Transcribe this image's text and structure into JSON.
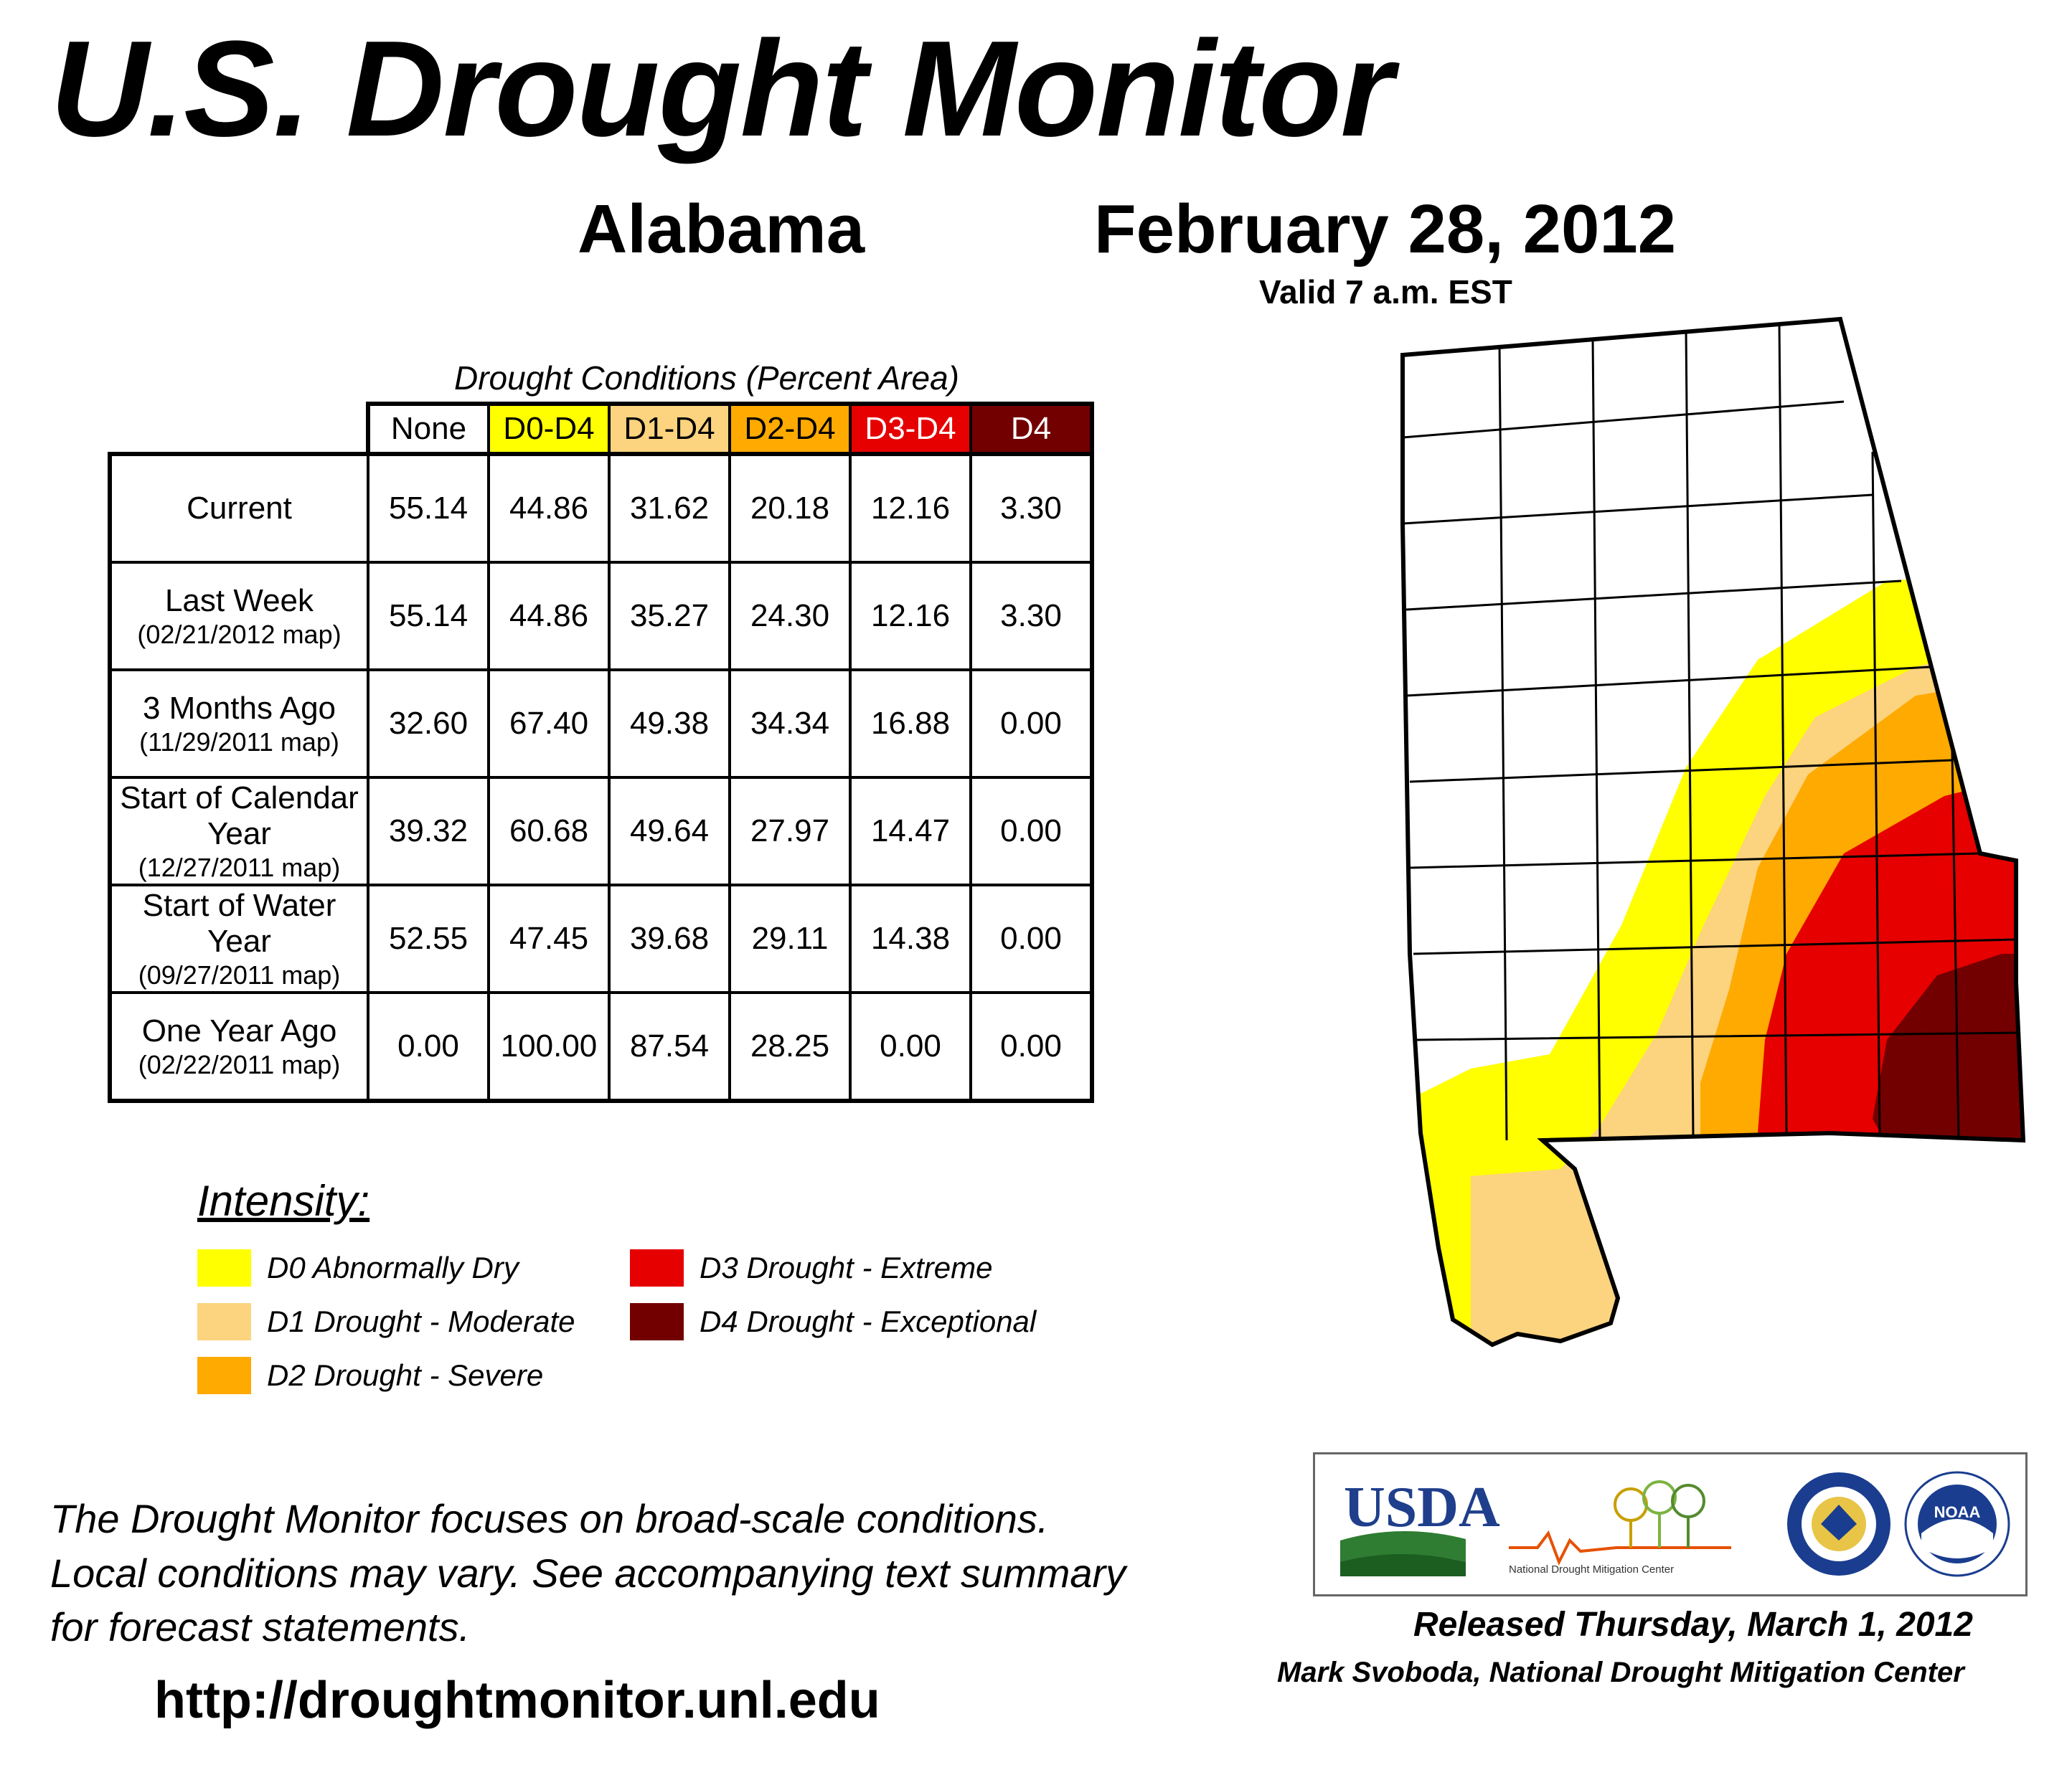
{
  "header": {
    "title": "U.S. Drought Monitor",
    "state": "Alabama",
    "date": "February 28, 2012",
    "valid": "Valid 7 a.m. EST"
  },
  "table": {
    "caption": "Drought Conditions (Percent Area)",
    "columns": [
      {
        "label": "None",
        "color": "#ffffff",
        "text_color": "#000000"
      },
      {
        "label": "D0-D4",
        "color": "#ffff00",
        "text_color": "#000000"
      },
      {
        "label": "D1-D4",
        "color": "#fcd37f",
        "text_color": "#000000"
      },
      {
        "label": "D2-D4",
        "color": "#ffaa00",
        "text_color": "#000000"
      },
      {
        "label": "D3-D4",
        "color": "#e60000",
        "text_color": "#ffffff"
      },
      {
        "label": "D4",
        "color": "#730000",
        "text_color": "#ffffff"
      }
    ],
    "rows": [
      {
        "label": "Current",
        "sub": "",
        "values": [
          "55.14",
          "44.86",
          "31.62",
          "20.18",
          "12.16",
          "3.30"
        ]
      },
      {
        "label": "Last Week",
        "sub": "(02/21/2012 map)",
        "values": [
          "55.14",
          "44.86",
          "35.27",
          "24.30",
          "12.16",
          "3.30"
        ]
      },
      {
        "label": "3 Months Ago",
        "sub": "(11/29/2011 map)",
        "values": [
          "32.60",
          "67.40",
          "49.38",
          "34.34",
          "16.88",
          "0.00"
        ]
      },
      {
        "label": "Start of Calendar Year",
        "sub": "(12/27/2011 map)",
        "values": [
          "39.32",
          "60.68",
          "49.64",
          "27.97",
          "14.47",
          "0.00"
        ]
      },
      {
        "label": "Start of Water Year",
        "sub": "(09/27/2011 map)",
        "values": [
          "52.55",
          "47.45",
          "39.68",
          "29.11",
          "14.38",
          "0.00"
        ]
      },
      {
        "label": "One Year Ago",
        "sub": "(02/22/2011 map)",
        "values": [
          "0.00",
          "100.00",
          "87.54",
          "28.25",
          "0.00",
          "0.00"
        ]
      }
    ]
  },
  "legend": {
    "title": "Intensity:",
    "items": [
      {
        "label": "D0 Abnormally Dry",
        "color": "#ffff00"
      },
      {
        "label": "D1 Drought - Moderate",
        "color": "#fcd37f"
      },
      {
        "label": "D2 Drought - Severe",
        "color": "#ffaa00"
      },
      {
        "label": "D3 Drought - Extreme",
        "color": "#e60000"
      },
      {
        "label": "D4 Drought - Exceptional",
        "color": "#730000"
      }
    ]
  },
  "footer": {
    "note_lines": [
      "The Drought Monitor focuses on broad-scale conditions.",
      "Local conditions may vary. See accompanying text summary",
      "for forecast statements."
    ],
    "url": "http://droughtmonitor.unl.edu",
    "released": "Released Thursday, March 1, 2012",
    "author": "Mark Svoboda, National Drought Mitigation Center"
  },
  "logos": {
    "usda": "USDA",
    "ndmc": "National Drought Mitigation Center",
    "noaa": "NOAA"
  }
}
